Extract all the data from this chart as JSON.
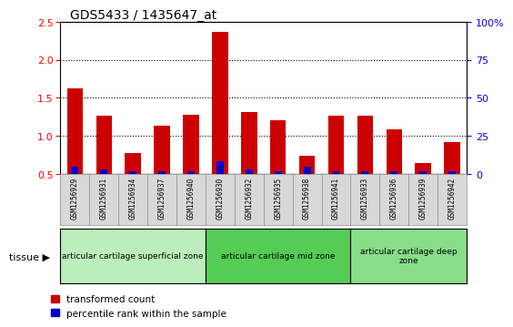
{
  "title": "GDS5433 / 1435647_at",
  "samples": [
    "GSM1256929",
    "GSM1256931",
    "GSM1256934",
    "GSM1256937",
    "GSM1256940",
    "GSM1256930",
    "GSM1256932",
    "GSM1256935",
    "GSM1256938",
    "GSM1256941",
    "GSM1256933",
    "GSM1256936",
    "GSM1256939",
    "GSM1256942"
  ],
  "transformed_count": [
    1.63,
    1.27,
    0.77,
    1.13,
    1.28,
    2.37,
    1.31,
    1.2,
    0.74,
    1.27,
    1.27,
    1.09,
    0.64,
    0.92
  ],
  "percentile_rank": [
    5,
    3,
    2,
    2,
    2,
    8,
    3,
    2,
    5,
    2,
    2,
    2,
    2,
    2
  ],
  "ylim_left": [
    0.5,
    2.5
  ],
  "ylim_right": [
    0,
    100
  ],
  "yticks_left": [
    0.5,
    1.0,
    1.5,
    2.0,
    2.5
  ],
  "yticks_right": [
    0,
    25,
    50,
    75,
    100
  ],
  "ytick_labels_right": [
    "0",
    "25",
    "50",
    "75",
    "100%"
  ],
  "bar_color_red": "#cc0000",
  "bar_color_blue": "#0000cc",
  "bg_color": "#d8d8d8",
  "plot_bg": "#ffffff",
  "groups": [
    {
      "label": "articular cartilage superficial zone",
      "start": 0,
      "end": 5,
      "color": "#bbeebb"
    },
    {
      "label": "articular cartilage mid zone",
      "start": 5,
      "end": 10,
      "color": "#55cc55"
    },
    {
      "label": "articular cartilage deep\nzone",
      "start": 10,
      "end": 14,
      "color": "#88dd88"
    }
  ],
  "tissue_label": "tissue",
  "legend_red": "transformed count",
  "legend_blue": "percentile rank within the sample",
  "bar_width": 0.55,
  "blue_bar_width": 0.25
}
